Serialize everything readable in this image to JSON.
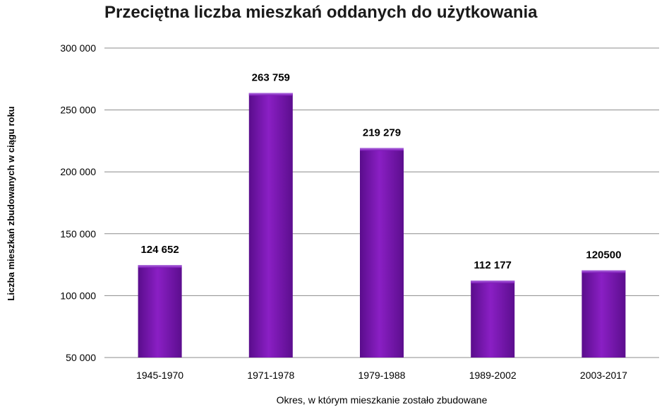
{
  "chart_data": {
    "type": "bar",
    "title": "Przeciętna liczba mieszkań oddanych do użytkowania",
    "xlabel": "Okres, w którym mieszkanie zostało zbudowane",
    "ylabel": "Liczba mieszkań zbudowanych w ciągu roku",
    "categories": [
      "1945-1970",
      "1971-1978",
      "1979-1988",
      "1989-2002",
      "2003-2017"
    ],
    "values": [
      124652,
      263759,
      219279,
      112177,
      120500
    ],
    "data_labels": [
      "124 652",
      "263 759",
      "219 279",
      "112 177",
      "120500"
    ],
    "ylim": [
      50000,
      300000
    ],
    "yticks": [
      50000,
      100000,
      150000,
      200000,
      250000,
      300000
    ],
    "ytick_labels": [
      "50 000",
      "100 000",
      "150 000",
      "200 000",
      "250 000",
      "300 000"
    ],
    "grid": true,
    "legend": "none",
    "colors": {
      "bar": "#7a14b4",
      "bar_dark": "#4c0a75",
      "bar_light": "#9a3fd0",
      "grid": "#8c8c8c"
    }
  }
}
